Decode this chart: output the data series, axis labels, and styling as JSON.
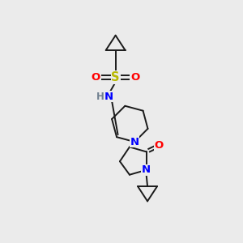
{
  "bg_color": "#ebebeb",
  "bond_color": "#1a1a1a",
  "S_color": "#b8b800",
  "N_color": "#0000ff",
  "O_color": "#ff0000",
  "H_color": "#708090",
  "font_size": 8.5,
  "line_width": 1.4,
  "figsize": [
    3.0,
    3.0
  ],
  "dpi": 100,
  "xlim": [
    0,
    10
  ],
  "ylim": [
    0,
    10
  ]
}
